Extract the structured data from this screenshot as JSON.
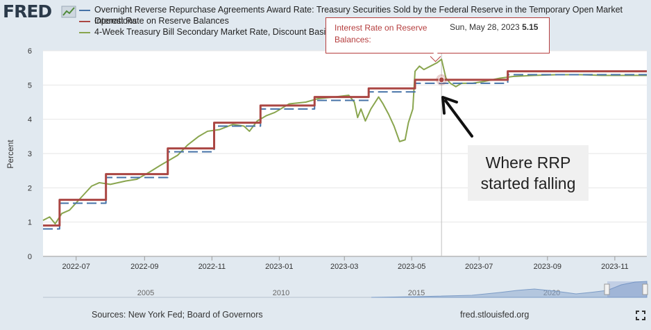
{
  "header": {
    "logo_text": "FRED",
    "logo_icon": "fred-chart-icon"
  },
  "legend": [
    {
      "label": "Overnight Reverse Repurchase Agreements Award Rate: Treasury Securities Sold by the Federal Reserve in the Temporary Open Market",
      "color": "#4572a7"
    },
    {
      "label": "Operations",
      "color": "#4572a7"
    },
    {
      "label": "Interest Rate on Reserve Balances",
      "color": "#aa4643"
    },
    {
      "label": "4-Week Treasury Bill Secondary Market Rate, Discount Basis",
      "color": "#89a54e"
    }
  ],
  "tooltip": {
    "label": "Interest Rate on Reserve Balances:",
    "date": "Sun, May 28, 2023",
    "value": "5.15"
  },
  "annotation": {
    "line1": "Where RRP",
    "line2": "started falling"
  },
  "footer": {
    "sources": "Sources: New York Fed; Board of Governors",
    "site": "fred.stlouisfed.org",
    "fullscreen_icon": "fullscreen-icon"
  },
  "chart_data": {
    "type": "line",
    "ylabel": "Percent",
    "ylim": [
      0,
      6
    ],
    "yticks": [
      "0",
      "1",
      "2",
      "3",
      "4",
      "5",
      "6"
    ],
    "xlim": [
      "2022-06-01",
      "2023-11-30"
    ],
    "xticks": [
      {
        "label": "2022-07",
        "date": "2022-07-01"
      },
      {
        "label": "2022-09",
        "date": "2022-09-01"
      },
      {
        "label": "2022-11",
        "date": "2022-11-01"
      },
      {
        "label": "2023-01",
        "date": "2023-01-01"
      },
      {
        "label": "2023-03",
        "date": "2023-03-01"
      },
      {
        "label": "2023-05",
        "date": "2023-05-01"
      },
      {
        "label": "2023-07",
        "date": "2023-07-01"
      },
      {
        "label": "2023-09",
        "date": "2023-09-01"
      },
      {
        "label": "2023-11",
        "date": "2023-11-01"
      }
    ],
    "grid": true,
    "legend_position": "top",
    "series": [
      {
        "name": "Overnight Reverse Repurchase Agreements Award Rate: Treasury Securities Sold by the Federal Reserve in the Temporary Open Market Operations",
        "color": "#4572a7",
        "dash": true,
        "step": true,
        "points": [
          [
            "2022-06-01",
            0.8
          ],
          [
            "2022-06-16",
            1.55
          ],
          [
            "2022-07-28",
            2.3
          ],
          [
            "2022-09-22",
            3.05
          ],
          [
            "2022-11-03",
            3.8
          ],
          [
            "2022-12-15",
            4.3
          ],
          [
            "2023-02-02",
            4.55
          ],
          [
            "2023-03-23",
            4.8
          ],
          [
            "2023-05-04",
            5.05
          ],
          [
            "2023-07-27",
            5.3
          ],
          [
            "2023-11-30",
            5.3
          ]
        ]
      },
      {
        "name": "Interest Rate on Reserve Balances",
        "color": "#aa4643",
        "dash": false,
        "step": true,
        "points": [
          [
            "2022-06-01",
            0.9
          ],
          [
            "2022-06-16",
            1.65
          ],
          [
            "2022-07-28",
            2.4
          ],
          [
            "2022-09-22",
            3.15
          ],
          [
            "2022-11-03",
            3.9
          ],
          [
            "2022-12-15",
            4.4
          ],
          [
            "2023-02-02",
            4.65
          ],
          [
            "2023-03-23",
            4.9
          ],
          [
            "2023-05-04",
            5.15
          ],
          [
            "2023-07-27",
            5.4
          ],
          [
            "2023-11-30",
            5.4
          ]
        ]
      },
      {
        "name": "4-Week Treasury Bill Secondary Market Rate, Discount Basis",
        "color": "#89a54e",
        "dash": false,
        "step": false,
        "points": [
          [
            "2022-06-01",
            1.05
          ],
          [
            "2022-06-07",
            1.15
          ],
          [
            "2022-06-12",
            0.95
          ],
          [
            "2022-06-18",
            1.25
          ],
          [
            "2022-06-25",
            1.35
          ],
          [
            "2022-07-05",
            1.7
          ],
          [
            "2022-07-15",
            2.05
          ],
          [
            "2022-07-22",
            2.15
          ],
          [
            "2022-08-01",
            2.1
          ],
          [
            "2022-08-15",
            2.2
          ],
          [
            "2022-08-25",
            2.25
          ],
          [
            "2022-09-05",
            2.45
          ],
          [
            "2022-09-15",
            2.65
          ],
          [
            "2022-09-23",
            2.8
          ],
          [
            "2022-10-01",
            2.95
          ],
          [
            "2022-10-10",
            3.25
          ],
          [
            "2022-10-20",
            3.5
          ],
          [
            "2022-10-28",
            3.65
          ],
          [
            "2022-11-08",
            3.7
          ],
          [
            "2022-11-20",
            3.85
          ],
          [
            "2022-11-30",
            3.8
          ],
          [
            "2022-12-05",
            3.65
          ],
          [
            "2022-12-12",
            3.95
          ],
          [
            "2022-12-20",
            4.1
          ],
          [
            "2022-12-28",
            4.2
          ],
          [
            "2023-01-10",
            4.45
          ],
          [
            "2023-01-25",
            4.5
          ],
          [
            "2023-02-05",
            4.6
          ],
          [
            "2023-02-20",
            4.65
          ],
          [
            "2023-03-05",
            4.7
          ],
          [
            "2023-03-10",
            4.5
          ],
          [
            "2023-03-13",
            4.05
          ],
          [
            "2023-03-16",
            4.3
          ],
          [
            "2023-03-20",
            3.95
          ],
          [
            "2023-03-25",
            4.3
          ],
          [
            "2023-04-01",
            4.65
          ],
          [
            "2023-04-05",
            4.45
          ],
          [
            "2023-04-10",
            4.15
          ],
          [
            "2023-04-15",
            3.8
          ],
          [
            "2023-04-20",
            3.35
          ],
          [
            "2023-04-25",
            3.4
          ],
          [
            "2023-04-28",
            3.9
          ],
          [
            "2023-05-02",
            4.3
          ],
          [
            "2023-05-04",
            5.4
          ],
          [
            "2023-05-08",
            5.55
          ],
          [
            "2023-05-12",
            5.45
          ],
          [
            "2023-05-18",
            5.55
          ],
          [
            "2023-05-24",
            5.65
          ],
          [
            "2023-05-28",
            5.75
          ],
          [
            "2023-06-01",
            5.2
          ],
          [
            "2023-06-05",
            5.05
          ],
          [
            "2023-06-10",
            4.95
          ],
          [
            "2023-06-15",
            5.05
          ],
          [
            "2023-06-25",
            5.05
          ],
          [
            "2023-07-05",
            5.1
          ],
          [
            "2023-07-20",
            5.2
          ],
          [
            "2023-08-01",
            5.25
          ],
          [
            "2023-08-20",
            5.28
          ],
          [
            "2023-09-10",
            5.3
          ],
          [
            "2023-10-01",
            5.3
          ],
          [
            "2023-10-20",
            5.28
          ],
          [
            "2023-11-10",
            5.28
          ],
          [
            "2023-11-30",
            5.28
          ]
        ]
      }
    ],
    "tooltip_point": {
      "date": "2023-05-28",
      "value": 5.15
    }
  },
  "navigator": {
    "labels": [
      "2005",
      "2010",
      "2015",
      "2020"
    ],
    "handle_icon": "range-handle-icon"
  }
}
